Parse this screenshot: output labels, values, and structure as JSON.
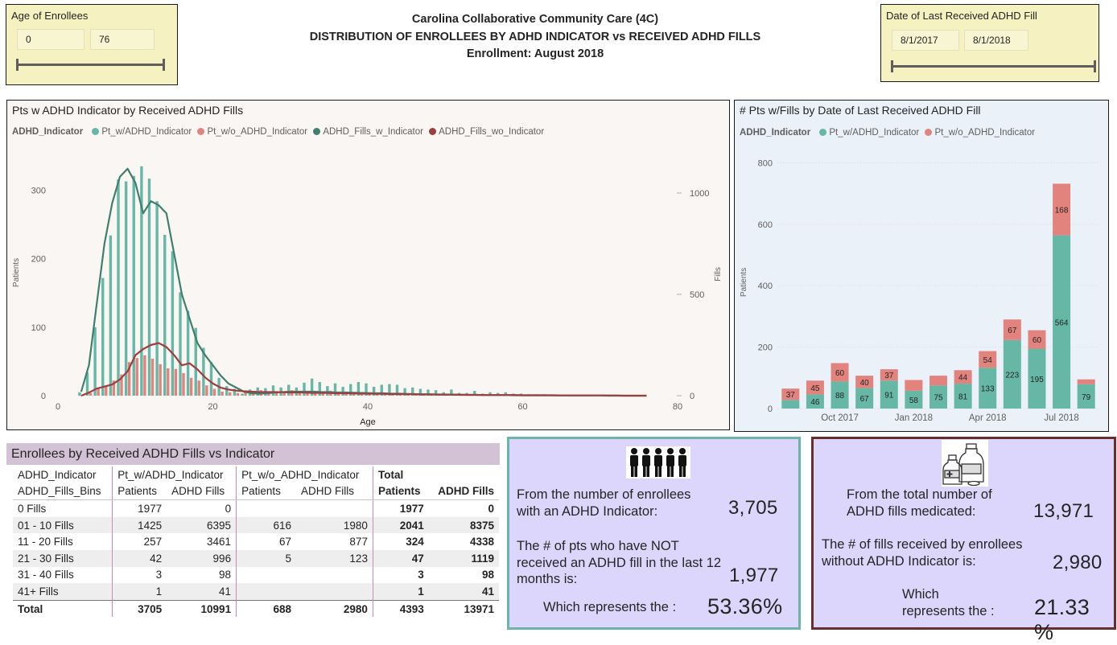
{
  "age_slicer": {
    "title": "Age of Enrollees",
    "min": "0",
    "max": "76"
  },
  "date_slicer": {
    "title": "Date of Last Received ADHD Fill",
    "start": "8/1/2017",
    "end": "8/1/2018"
  },
  "header": {
    "line1": "Carolina Collaborative Community Care (4C)",
    "line2": "DISTRIBUTION OF ENROLLEES BY ADHD INDICATOR vs RECEIVED ADHD FILLS",
    "line3": "Enrollment: August 2018"
  },
  "colors": {
    "teal": "#67b7a6",
    "salmon": "#e3837e",
    "dark_teal": "#3f7f6e",
    "dark_red": "#a03e3e"
  },
  "chart_data": [
    {
      "type": "bar",
      "title": "Pts w ADHD Indicator by Received ADHD Fills",
      "legend_title": "ADHD_Indicator",
      "legend": [
        "Pt_w/ADHD_Indicator",
        "Pt_w/o_ADHD_Indicator",
        "ADHD_Fills_w_Indicator",
        "ADHD_Fills_wo_Indicator"
      ],
      "xlabel": "Age",
      "ylabel": "Patients",
      "y2label": "Fills",
      "xlim": [
        0,
        80
      ],
      "ylim": [
        0,
        370
      ],
      "y2lim": [
        0,
        1250
      ],
      "x_ticks": [
        "0",
        "20",
        "40",
        "60",
        "80"
      ],
      "y_ticks": [
        "0",
        "100",
        "200",
        "300"
      ],
      "y2_ticks": [
        "0",
        "500",
        "1000"
      ],
      "ages": [
        3,
        4,
        5,
        6,
        7,
        8,
        9,
        10,
        11,
        12,
        13,
        14,
        15,
        16,
        17,
        18,
        19,
        20,
        21,
        22,
        23,
        24,
        25,
        26,
        27,
        28,
        29,
        30,
        31,
        32,
        33,
        34,
        35,
        36,
        37,
        38,
        39,
        40,
        41,
        42,
        43,
        44,
        45,
        46,
        47,
        48,
        49,
        50,
        51,
        52,
        53,
        54,
        55,
        56,
        57,
        58,
        59,
        60,
        61,
        62,
        63,
        64,
        65,
        66,
        67,
        68,
        69,
        70,
        71,
        72,
        73,
        74,
        75,
        76
      ],
      "series": [
        {
          "name": "Pt_w/ADHD_Indicator",
          "values": [
            5,
            34,
            100,
            172,
            234,
            316,
            313,
            321,
            335,
            317,
            284,
            235,
            211,
            151,
            124,
            99,
            70,
            49,
            26,
            14,
            10,
            3,
            9,
            12,
            11,
            15,
            12,
            16,
            12,
            19,
            25,
            20,
            14,
            18,
            13,
            17,
            20,
            18,
            13,
            16,
            17,
            16,
            11,
            12,
            10,
            9,
            8,
            5,
            9,
            4,
            4,
            7,
            3,
            5,
            4,
            5,
            3,
            3,
            2,
            2,
            2,
            2,
            1,
            1,
            1,
            1,
            1,
            1,
            1,
            1,
            1,
            1,
            1,
            1
          ]
        },
        {
          "name": "Pt_w/o_ADHD_Indicator",
          "values": [
            0,
            4,
            10,
            15,
            22,
            31,
            49,
            55,
            59,
            54,
            46,
            40,
            39,
            33,
            26,
            22,
            15,
            10,
            6,
            5,
            4,
            7,
            7,
            8,
            6,
            6,
            5,
            8,
            6,
            7,
            5,
            6,
            7,
            4,
            6,
            5,
            4,
            4,
            3,
            4,
            3,
            4,
            3,
            3,
            3,
            3,
            2,
            2,
            2,
            2,
            1,
            2,
            1,
            1,
            1,
            1,
            1,
            1,
            0,
            1,
            0,
            1,
            0,
            0,
            0,
            0,
            0,
            0,
            0,
            0,
            0,
            0,
            0,
            0
          ]
        },
        {
          "name": "ADHD_Fills_w_Indicator",
          "values": [
            20,
            150,
            450,
            750,
            950,
            1080,
            1120,
            1050,
            900,
            960,
            940,
            900,
            700,
            500,
            380,
            260,
            200,
            150,
            100,
            60,
            40,
            20,
            12,
            10,
            12,
            15,
            18,
            20,
            20,
            20,
            20,
            18,
            18,
            16,
            16,
            15,
            14,
            13,
            12,
            12,
            10,
            10,
            9,
            8,
            7,
            7,
            6,
            6,
            5,
            5,
            4,
            4,
            3,
            3,
            3,
            3,
            2,
            2,
            2,
            2,
            2,
            1,
            1,
            1,
            1,
            1,
            1,
            1,
            0,
            0,
            0,
            0,
            0,
            0
          ]
        },
        {
          "name": "ADHD_Fills_wo_Indicator",
          "values": [
            0,
            15,
            35,
            45,
            55,
            80,
            120,
            200,
            230,
            250,
            260,
            240,
            200,
            150,
            160,
            130,
            90,
            60,
            40,
            30,
            25,
            22,
            20,
            18,
            18,
            18,
            17,
            16,
            16,
            15,
            14,
            14,
            13,
            12,
            12,
            11,
            10,
            10,
            9,
            9,
            8,
            8,
            7,
            7,
            6,
            6,
            5,
            5,
            5,
            4,
            4,
            4,
            3,
            3,
            3,
            3,
            3,
            2,
            2,
            2,
            2,
            2,
            1,
            1,
            1,
            1,
            1,
            1,
            1,
            1,
            0,
            0,
            0,
            0
          ]
        }
      ]
    },
    {
      "type": "bar",
      "stacked": true,
      "title": "# Pts w/Fills by Date of Last Received ADHD Fill",
      "legend_title": "ADHD_Indicator",
      "legend": [
        "Pt_w/ADHD_Indicator",
        "Pt_w/o_ADHD_Indicator"
      ],
      "ylabel": "Patients",
      "ylim": [
        0,
        830
      ],
      "y_ticks": [
        "0",
        "200",
        "400",
        "600",
        "800"
      ],
      "x_ticks": [
        "Oct 2017",
        "Jan 2018",
        "Apr 2018",
        "Jul 2018"
      ],
      "categories": [
        "Aug 2017",
        "Sep 2017",
        "Oct 2017",
        "Nov 2017",
        "Dec 2017",
        "Jan 2018",
        "Feb 2018",
        "Mar 2018",
        "Apr 2018",
        "May 2018",
        "Jun 2018",
        "Jul 2018",
        "Aug 2018"
      ],
      "series": [
        {
          "name": "Pt_w/ADHD_Indicator",
          "values": [
            28,
            46,
            88,
            67,
            91,
            58,
            75,
            81,
            133,
            223,
            195,
            564,
            79
          ],
          "labels": [
            "",
            "46",
            "88",
            "67",
            "91",
            "58",
            "75",
            "81",
            "133",
            "223",
            "195",
            "564",
            "79"
          ]
        },
        {
          "name": "Pt_w/o_ADHD_Indicator",
          "values": [
            37,
            45,
            60,
            40,
            37,
            35,
            32,
            44,
            54,
            67,
            60,
            168,
            16
          ],
          "labels": [
            "37",
            "45",
            "60",
            "40",
            "37",
            "",
            "",
            "44",
            "54",
            "67",
            "60",
            "168",
            ""
          ]
        }
      ]
    },
    {
      "type": "table",
      "title": "Enrollees by Received ADHD Fills vs Indicator",
      "row_header_1": "ADHD_Indicator",
      "row_header_2": "ADHD_Fills_Bins",
      "groups": [
        "Pt_w/ADHD_Indicator",
        "Pt_w/o_ADHD_Indicator",
        "Total"
      ],
      "subheaders": [
        "Patients",
        "ADHD Fills",
        "Patients",
        "ADHD Fills",
        "Patients",
        "ADHD Fills"
      ],
      "rows": [
        {
          "bin": "0 Fills",
          "values": [
            "1977",
            "0",
            "",
            "",
            "1977",
            "0"
          ]
        },
        {
          "bin": "01 - 10 Fills",
          "values": [
            "1425",
            "6395",
            "616",
            "1980",
            "2041",
            "8375"
          ]
        },
        {
          "bin": "11 - 20 Fills",
          "values": [
            "257",
            "3461",
            "67",
            "877",
            "324",
            "4338"
          ]
        },
        {
          "bin": "21 - 30 Fills",
          "values": [
            "42",
            "996",
            "5",
            "123",
            "47",
            "1119"
          ]
        },
        {
          "bin": "31 - 40 Fills",
          "values": [
            "3",
            "98",
            "",
            "",
            "3",
            "98"
          ]
        },
        {
          "bin": "41+ Fills",
          "values": [
            "1",
            "41",
            "",
            "",
            "1",
            "41"
          ]
        }
      ],
      "total": {
        "bin": "Total",
        "values": [
          "3705",
          "10991",
          "688",
          "2980",
          "4393",
          "13971"
        ]
      }
    }
  ],
  "card_left": {
    "text1": "From the number of enrollees with an ADHD Indicator:",
    "value1": "3,705",
    "text2": "The # of pts who have NOT received an ADHD fill in the last 12 months is:",
    "value2": "1,977",
    "text3": "Which represents the :",
    "value3": "53.36%",
    "icon": "people-icon"
  },
  "card_right": {
    "text1": "From the total number of ADHD fills medicated:",
    "value1": "13,971",
    "text2": "The # of fills received by enrollees without ADHD Indicator is:",
    "value2": "2,980",
    "text3": "Which represents the :",
    "value3": "21.33 %",
    "icon": "medicine-icon"
  }
}
